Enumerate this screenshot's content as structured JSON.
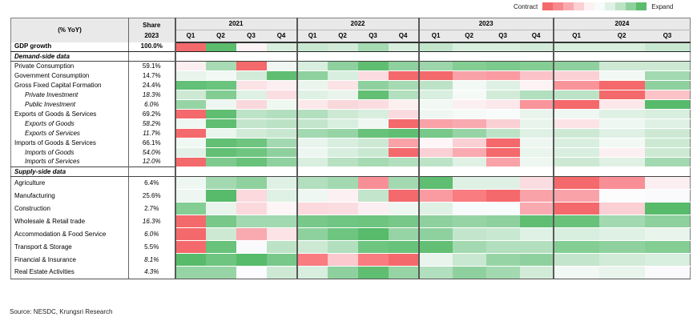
{
  "source_note": "Source: NESDC, Krungsri Research",
  "chart_data": {
    "type": "heatmap",
    "value_encoding": "cell color only (no numeric labels shown); red = contraction, green = expansion, %YoY",
    "color_scale": {
      "contract": "#F4696B",
      "neutral": "#FFFFFF",
      "expand": "#5BBC6E"
    },
    "legend": {
      "contract_label": "Contract",
      "expand_label": "Expand",
      "colors": [
        "#F4696B",
        "#F7888C",
        "#F9AAAF",
        "#FBD0D4",
        "#FDF2F3",
        "#F7FBF9",
        "#DFF1E4",
        "#BDE3C7",
        "#8FD19E",
        "#5BBC6E"
      ]
    },
    "header": {
      "corner_label": "(% YoY)",
      "share_label": "Share",
      "share_year": "2023",
      "year_groups": [
        {
          "year": "2021",
          "quarters": [
            "Q1",
            "Q2",
            "Q3",
            "Q4"
          ]
        },
        {
          "year": "2022",
          "quarters": [
            "Q1",
            "Q2",
            "Q3",
            "Q4"
          ]
        },
        {
          "year": "2023",
          "quarters": [
            "Q1",
            "Q2",
            "Q3",
            "Q4"
          ]
        },
        {
          "year": "2024",
          "quarters": [
            "Q1",
            "Q2",
            "Q3"
          ]
        }
      ]
    },
    "columns": [
      "2021 Q1",
      "2021 Q2",
      "2021 Q3",
      "2021 Q4",
      "2022 Q1",
      "2022 Q2",
      "2022 Q3",
      "2022 Q4",
      "2023 Q1",
      "2023 Q2",
      "2023 Q3",
      "2023 Q4",
      "2024 Q1",
      "2024 Q2",
      "2024 Q3"
    ],
    "rows": [
      {
        "label": "GDP growth",
        "share": "100.0%",
        "type": "gdp",
        "cells": [
          "#F4696B",
          "#5BBC6E",
          "#FDF3F4",
          "#D8EEDE",
          "#C9E8D1",
          "#D2EBD8",
          "#A5DAB2",
          "#D8EEDE",
          "#C3E5CC",
          "#D8EEDE",
          "#D8EEDE",
          "#D2EBD8",
          "#D8EEDE",
          "#D8EEDE",
          "#C9E8D1"
        ]
      },
      {
        "label": "Demand-side data",
        "share": "",
        "type": "section",
        "cells": null
      },
      {
        "label": "Private Consumption",
        "share": "59.1%",
        "type": "main",
        "cells": [
          "#FCEFF1",
          "#A8DBB4",
          "#F4696B",
          "#F0F7F3",
          "#D8EEDE",
          "#8FD19E",
          "#5FBE71",
          "#8FD19E",
          "#9CD6AA",
          "#84CE94",
          "#7CCA8D",
          "#84CE94",
          "#8FD19E",
          "#CDE9D4",
          "#CDE9D4"
        ]
      },
      {
        "label": "Government Consumption",
        "share": "14.7%",
        "type": "main",
        "cells": [
          "#E8F4EC",
          "#F2F9F5",
          "#D2EBD8",
          "#5FBE71",
          "#8FD19E",
          "#D8EEDE",
          "#FADCE0",
          "#F4696B",
          "#F4696B",
          "#F9A2A8",
          "#F99BA1",
          "#FBC3C8",
          "#FBD0D4",
          "#F2F9F5",
          "#A3D9B0"
        ]
      },
      {
        "label": "Gross Fixed Capital Formation",
        "share": "24.4%",
        "type": "main",
        "cells": [
          "#62C077",
          "#6BC47D",
          "#FBE3E6",
          "#FCEFF1",
          "#EAF5EE",
          "#FBE3E6",
          "#8FD19E",
          "#A5DAB2",
          "#BDE3C7",
          "#F2F9F5",
          "#DFF1E4",
          "#FDF3F4",
          "#F9949B",
          "#F4696B",
          "#8FD19E"
        ]
      },
      {
        "label": "Private Investment",
        "share": "18.3%",
        "type": "sub",
        "cells": [
          "#CDE9D4",
          "#83CD93",
          "#DFF1E4",
          "#FADEE2",
          "#DFF1E4",
          "#E8F4EC",
          "#62BF74",
          "#B2DFBE",
          "#D8EEDE",
          "#F5FAF7",
          "#D2EBD8",
          "#B2DFBE",
          "#BDE3C7",
          "#F4696B",
          "#FBC3C8"
        ]
      },
      {
        "label": "Public Investment",
        "share": "6.0%",
        "type": "sub",
        "cells": [
          "#97D4A5",
          "#EDF6F0",
          "#F9D8DC",
          "#EFF7F1",
          "#FBE8EB",
          "#F9D8DC",
          "#FBDDE1",
          "#FCEFF0",
          "#F2F8F4",
          "#FCEFF1",
          "#FBE8EB",
          "#F9949B",
          "#F4696B",
          "#FCE8EA",
          "#57BB6B"
        ]
      },
      {
        "label": "Exports of Goods & Services",
        "share": "69.2%",
        "type": "main",
        "cells": [
          "#F4696B",
          "#5FBE71",
          "#BDE3C7",
          "#B2DFBE",
          "#B2DFBE",
          "#CDE9D4",
          "#D8EEDE",
          "#FADCE0",
          "#EFF7F3",
          "#F5FAF7",
          "#F7FBF9",
          "#E8F4EC",
          "#EFF7F3",
          "#DFF1E4",
          "#D8EEDE"
        ]
      },
      {
        "label": "Exports of Goods",
        "share": "58.2%",
        "type": "sub",
        "cells": [
          "#EFF7F3",
          "#5FBE71",
          "#C3E5CC",
          "#BCE2C6",
          "#C3E5CC",
          "#D8EEDE",
          "#EFF7F3",
          "#F4696B",
          "#F9A2A8",
          "#F9AAB0",
          "#FBD0D4",
          "#E8F4EC",
          "#FBE3E6",
          "#EFF7F3",
          "#DFF1E4"
        ]
      },
      {
        "label": "Exports of Services",
        "share": "11.7%",
        "type": "sub",
        "cells": [
          "#F4696B",
          "#EAF5EE",
          "#D2EBD8",
          "#C8E7D0",
          "#A3D9B0",
          "#97D4A5",
          "#68C27A",
          "#5FBE71",
          "#77C889",
          "#97D4A5",
          "#BDE3C7",
          "#DFF1E4",
          "#CDE9D4",
          "#DFF1E4",
          "#CDE9D4"
        ]
      },
      {
        "label": "Imports of Goods & Services",
        "share": "66.1%",
        "type": "main",
        "cells": [
          "#F0F8F3",
          "#62BF74",
          "#6EC57F",
          "#A3D9B0",
          "#E8F4EC",
          "#D8EEDE",
          "#CDE9D4",
          "#F9A2A8",
          "#FDF5F6",
          "#FBD0D4",
          "#F4696B",
          "#EDF6F0",
          "#D8EEDE",
          "#F2F9F5",
          "#CDE9D4"
        ]
      },
      {
        "label": "Imports of Goods",
        "share": "54.0%",
        "type": "sub",
        "cells": [
          "#E2F1E7",
          "#62BF74",
          "#6EC57F",
          "#8FD19E",
          "#EDF6F0",
          "#D8EEDE",
          "#C9E8D1",
          "#F4696B",
          "#FBD0D4",
          "#F9AAB0",
          "#F4696B",
          "#E8F4EC",
          "#D8EEDE",
          "#FCEFF1",
          "#CDE9D4"
        ]
      },
      {
        "label": "Imports of Services",
        "share": "12.0%",
        "type": "sub",
        "cells": [
          "#F4696B",
          "#7FCB8F",
          "#68C27A",
          "#90D1A0",
          "#D8EEDE",
          "#B8E1C2",
          "#A5DAB2",
          "#B2DFBE",
          "#BDE3C7",
          "#DFF1E4",
          "#F9A2A8",
          "#EDF6F0",
          "#CDE9D4",
          "#DFF1E4",
          "#A3D9B0"
        ]
      },
      {
        "label": "Supply-side data",
        "share": "",
        "type": "section",
        "cells": null
      },
      {
        "label": "Agriculture",
        "share": "6.4%",
        "type": "supply",
        "cells": [
          "#EFF7F3",
          "#A3D9B0",
          "#8FD19E",
          "#DFF1E4",
          "#B2DFBE",
          "#A3D9B0",
          "#F98F96",
          "#A3D9B0",
          "#5FBE71",
          "#DFF1E4",
          "#DFF1E4",
          "#FBDDE1",
          "#F4696B",
          "#F98F96",
          "#FCEFF1"
        ]
      },
      {
        "label": "Manufacturing",
        "share": "25.6%",
        "type": "supply",
        "cells": [
          "#EDF6F0",
          "#57BB6B",
          "#FBD9DD",
          "#DFF1E4",
          "#EFF7F3",
          "#FDF0F2",
          "#C3E5CC",
          "#F4696B",
          "#F99BA1",
          "#F87C80",
          "#F4696B",
          "#F9A2A8",
          "#F9A2A8",
          "#FCFCFD",
          "#FAFAFC"
        ]
      },
      {
        "label": "Construction",
        "share": "2.7%",
        "type": "supply",
        "cells": [
          "#84CE94",
          "#E8F4EC",
          "#FBD9DD",
          "#FDF5F6",
          "#FBD9DD",
          "#FBDDE1",
          "#FCEFF1",
          "#EDF6F0",
          "#DFF1E4",
          "#F7FBFB",
          "#F7FBFB",
          "#F9AAB0",
          "#F4696B",
          "#FBD0D4",
          "#57BB6B"
        ]
      },
      {
        "label": "Wholesale & Retail trade",
        "share": "16.3%",
        "share_italic": true,
        "type": "supply",
        "cells": [
          "#F4696B",
          "#77C889",
          "#A3D9B0",
          "#A3D9B0",
          "#77C889",
          "#70C583",
          "#6EC57F",
          "#77C889",
          "#8FD19E",
          "#97D4A5",
          "#8FD19E",
          "#5FBE71",
          "#68C27A",
          "#A3D9B0",
          "#8FD19E"
        ]
      },
      {
        "label": "Accommodation & Food Service",
        "share": "6.0%",
        "share_italic": true,
        "type": "supply",
        "cells": [
          "#F4696B",
          "#CDE9D4",
          "#F9AAB0",
          "#FBE3E6",
          "#8FD19E",
          "#6EC57F",
          "#57BB6B",
          "#97D4A5",
          "#8FD19E",
          "#C3E5CC",
          "#C9E8D1",
          "#DFF1E4",
          "#D8EEDE",
          "#DFF1E4",
          "#E8F4EC"
        ]
      },
      {
        "label": "Transport & Storage",
        "share": "5.5%",
        "type": "supply",
        "cells": [
          "#F4696B",
          "#68C27A",
          "#FAFAFC",
          "#BDE3C7",
          "#CDE9D4",
          "#B2DFBE",
          "#6EC57F",
          "#68C27A",
          "#62BF74",
          "#A3D9B0",
          "#B2DFBE",
          "#B2DFBE",
          "#84CE94",
          "#8FD19E",
          "#84CE94"
        ]
      },
      {
        "label": "Financial & Insurance",
        "share": "8.1%",
        "share_italic": true,
        "type": "supply",
        "cells": [
          "#57BB6B",
          "#6EC57F",
          "#57BB6B",
          "#77C889",
          "#F87C80",
          "#FBC9CE",
          "#F87C80",
          "#F4696B",
          "#E8F4EC",
          "#C9E8D1",
          "#97D4A5",
          "#8FD19E",
          "#C3E5CC",
          "#D2EBD8",
          "#D8EEDE"
        ]
      },
      {
        "label": "Real Estate Activities",
        "share": "4.3%",
        "share_italic": true,
        "type": "supply",
        "cells": [
          "#97D4A5",
          "#97D4A5",
          "#FCFCFE",
          "#CDE9D4",
          "#D8EEDE",
          "#8FD19E",
          "#5FBE71",
          "#97D4A5",
          "#B2DFBE",
          "#8FD19E",
          "#A3D9B0",
          "#D2EBD8",
          "#F2F9F5",
          "#E8F4EC",
          "#FAFAFC"
        ]
      }
    ]
  }
}
